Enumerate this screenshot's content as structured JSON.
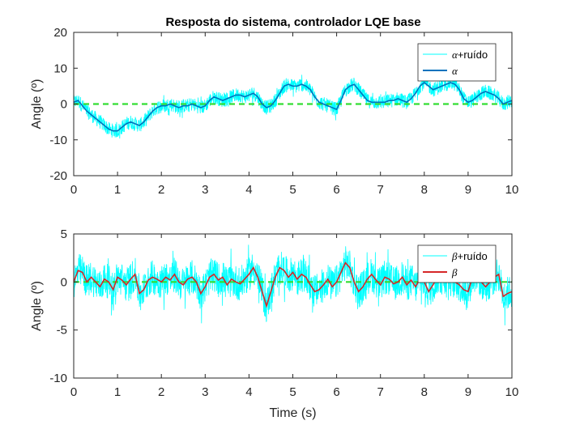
{
  "figure": {
    "title": "Resposta do sistema, controlador LQE base"
  },
  "colors": {
    "noisy": "#00ffff",
    "alpha": "#0072bd",
    "beta": "#d62728",
    "reference": "#33dd33",
    "axis": "#262626"
  },
  "chart_data": [
    {
      "type": "line",
      "title": "Resposta do sistema, controlador LQE base",
      "xlabel": "",
      "ylabel": "Angle (º)",
      "xlim": [
        0,
        10
      ],
      "ylim": [
        -20,
        20
      ],
      "xticks": [
        "0",
        "1",
        "2",
        "3",
        "4",
        "5",
        "6",
        "7",
        "8",
        "9",
        "10"
      ],
      "yticks": [
        "-20",
        "-10",
        "0",
        "10",
        "20"
      ],
      "legend_position": "top-right",
      "legend": [
        {
          "symbol": "α",
          "suffix": "+ruído"
        },
        {
          "symbol": "α",
          "suffix": ""
        }
      ],
      "reference_line": 0,
      "noise_amplitude": 2.0,
      "series": [
        {
          "name": "α",
          "x": [
            0,
            0.1,
            0.2,
            0.3,
            0.4,
            0.5,
            0.6,
            0.7,
            0.8,
            0.9,
            1.0,
            1.1,
            1.2,
            1.3,
            1.4,
            1.5,
            1.6,
            1.7,
            1.8,
            1.9,
            2.0,
            2.1,
            2.2,
            2.3,
            2.4,
            2.5,
            2.6,
            2.7,
            2.8,
            2.9,
            3.0,
            3.1,
            3.2,
            3.3,
            3.4,
            3.5,
            3.6,
            3.7,
            3.8,
            3.9,
            4.0,
            4.1,
            4.2,
            4.3,
            4.4,
            4.5,
            4.6,
            4.7,
            4.8,
            4.9,
            5.0,
            5.1,
            5.2,
            5.3,
            5.4,
            5.5,
            5.6,
            5.7,
            5.8,
            5.9,
            6.0,
            6.1,
            6.2,
            6.3,
            6.4,
            6.5,
            6.6,
            6.7,
            6.8,
            6.9,
            7.0,
            7.1,
            7.2,
            7.3,
            7.4,
            7.5,
            7.6,
            7.7,
            7.8,
            7.9,
            8.0,
            8.1,
            8.2,
            8.3,
            8.4,
            8.5,
            8.6,
            8.7,
            8.8,
            8.9,
            9.0,
            9.1,
            9.2,
            9.3,
            9.4,
            9.5,
            9.6,
            9.7,
            9.8,
            9.9,
            10.0
          ],
          "y": [
            0.5,
            1.0,
            -0.5,
            -2.0,
            -3.0,
            -4.0,
            -5.0,
            -6.0,
            -7.0,
            -7.5,
            -7.5,
            -6.5,
            -5.5,
            -5.0,
            -5.5,
            -6.0,
            -5.0,
            -3.5,
            -2.0,
            -1.0,
            -0.5,
            -0.5,
            0,
            -0.5,
            -1.0,
            -0.5,
            -0.5,
            0,
            -0.5,
            -1.0,
            -0.5,
            1.0,
            2.0,
            1.5,
            1.0,
            1.5,
            2.0,
            2.5,
            2.5,
            2.0,
            2.5,
            3.0,
            2.0,
            0,
            -1.0,
            -0.5,
            1.0,
            3.0,
            5.0,
            5.5,
            5.0,
            5.0,
            5.5,
            5.0,
            4.0,
            2.0,
            0.5,
            0,
            -0.5,
            -1.0,
            -1.5,
            1.0,
            4.0,
            5.0,
            5.5,
            4.0,
            2.5,
            1.0,
            0.5,
            0.5,
            0.5,
            0.5,
            1.0,
            1.0,
            1.5,
            1.0,
            0.5,
            1.5,
            3.0,
            5.0,
            6.0,
            5.0,
            4.0,
            4.5,
            5.0,
            5.5,
            6.0,
            5.5,
            4.0,
            1.5,
            0.5,
            1.0,
            2.0,
            3.0,
            3.5,
            3.0,
            2.5,
            1.5,
            0,
            0.5,
            1.0
          ]
        }
      ]
    },
    {
      "type": "line",
      "title": "",
      "xlabel": "Time (s)",
      "ylabel": "Angle (º)",
      "xlim": [
        0,
        10
      ],
      "ylim": [
        -10,
        5
      ],
      "xticks": [
        "0",
        "1",
        "2",
        "3",
        "4",
        "5",
        "6",
        "7",
        "8",
        "9",
        "10"
      ],
      "yticks": [
        "-10",
        "-5",
        "0",
        "5"
      ],
      "legend_position": "top-right",
      "legend": [
        {
          "symbol": "β",
          "suffix": "+ruído"
        },
        {
          "symbol": "β",
          "suffix": ""
        }
      ],
      "reference_line": 0,
      "noise_amplitude": 1.8,
      "series": [
        {
          "name": "β",
          "x": [
            0,
            0.1,
            0.2,
            0.3,
            0.4,
            0.5,
            0.6,
            0.7,
            0.8,
            0.9,
            1.0,
            1.1,
            1.2,
            1.3,
            1.4,
            1.5,
            1.6,
            1.7,
            1.8,
            1.9,
            2.0,
            2.1,
            2.2,
            2.3,
            2.4,
            2.5,
            2.6,
            2.7,
            2.8,
            2.9,
            3.0,
            3.1,
            3.2,
            3.3,
            3.4,
            3.5,
            3.6,
            3.7,
            3.8,
            3.9,
            4.0,
            4.1,
            4.2,
            4.3,
            4.4,
            4.5,
            4.6,
            4.7,
            4.8,
            4.9,
            5.0,
            5.1,
            5.2,
            5.3,
            5.4,
            5.5,
            5.6,
            5.7,
            5.8,
            5.9,
            6.0,
            6.1,
            6.2,
            6.3,
            6.4,
            6.5,
            6.6,
            6.7,
            6.8,
            6.9,
            7.0,
            7.1,
            7.2,
            7.3,
            7.4,
            7.5,
            7.6,
            7.7,
            7.8,
            7.9,
            8.0,
            8.1,
            8.2,
            8.3,
            8.4,
            8.5,
            8.6,
            8.7,
            8.8,
            8.9,
            9.0,
            9.1,
            9.2,
            9.3,
            9.4,
            9.5,
            9.6,
            9.7,
            9.8,
            9.9,
            10.0
          ],
          "y": [
            0,
            1.2,
            1.0,
            0,
            0.5,
            0,
            -0.5,
            0.3,
            0,
            -0.8,
            0.5,
            0.2,
            -0.3,
            0.3,
            0.8,
            -1.2,
            -0.8,
            0.2,
            0.5,
            0.3,
            0,
            0.5,
            0.2,
            0.8,
            0,
            -0.3,
            0.3,
            0.5,
            0,
            -1.2,
            -0.5,
            0.5,
            0.8,
            0.2,
            0.5,
            -0.3,
            0.3,
            0,
            -0.2,
            0.3,
            0.8,
            1.5,
            0.5,
            -1.0,
            -2.5,
            -1.0,
            0.5,
            1.5,
            1.2,
            0.5,
            1.0,
            0.3,
            0.8,
            0.5,
            -0.3,
            -1.0,
            -0.8,
            -0.3,
            0.3,
            -0.5,
            0,
            1.0,
            2.0,
            1.5,
            0,
            -1.0,
            -0.5,
            0.3,
            0.8,
            0.2,
            -0.3,
            0.5,
            0.3,
            -0.2,
            0,
            0.5,
            -0.3,
            0.2,
            -0.5,
            0.3,
            0,
            -1.0,
            -0.3,
            0.5,
            0.3,
            0.8,
            0.3,
            0,
            -0.3,
            -0.8,
            -1.0,
            0.5,
            0.8,
            0,
            -0.5,
            0,
            0.5,
            0.8,
            -1.5,
            -1.2,
            -1.0
          ]
        }
      ]
    }
  ]
}
